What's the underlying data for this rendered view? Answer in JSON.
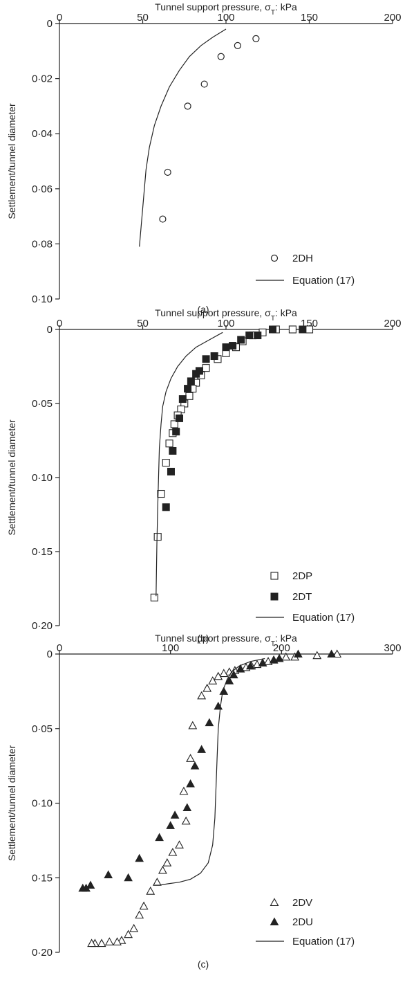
{
  "chart_data": [
    {
      "type": "scatter",
      "panel_label": "(a)",
      "xlabel": "Tunnel support pressure, σ",
      "xlabel_sub": "T",
      "xlabel_unit": ": kPa",
      "ylabel": "Settlement/tunnel diameter",
      "xlim": [
        0,
        200
      ],
      "ylim": [
        0,
        0.1
      ],
      "x_axis_position": "top",
      "y_inverted": true,
      "grid": false,
      "legend_position": "bottom-right",
      "x_ticks": [
        0,
        50,
        100,
        150,
        200
      ],
      "x_tick_labels": [
        "0",
        "50",
        "100",
        "150",
        "200"
      ],
      "y_ticks": [
        0,
        0.02,
        0.04,
        0.06,
        0.08,
        0.1
      ],
      "y_tick_labels": [
        "0",
        "0·02",
        "0·04",
        "0·06",
        "0·08",
        "0·10"
      ],
      "series": [
        {
          "name": "2DH",
          "marker": "circle-open",
          "x": [
            118,
            107,
            97,
            87,
            77,
            65,
            62
          ],
          "y": [
            0.0055,
            0.008,
            0.012,
            0.022,
            0.03,
            0.054,
            0.071
          ]
        },
        {
          "name": "Equation (17)",
          "marker": "line",
          "x": [
            100,
            92,
            85,
            78,
            72,
            66,
            61,
            57,
            54,
            52,
            51,
            50,
            49,
            48
          ],
          "y": [
            0.002,
            0.005,
            0.008,
            0.012,
            0.017,
            0.023,
            0.03,
            0.037,
            0.045,
            0.053,
            0.06,
            0.067,
            0.074,
            0.081
          ]
        }
      ]
    },
    {
      "type": "scatter",
      "panel_label": "(b)",
      "xlabel": "Tunnel support pressure, σ",
      "xlabel_sub": "T",
      "xlabel_unit": ": kPa",
      "ylabel": "Settlement/tunnel diameter",
      "xlim": [
        0,
        200
      ],
      "ylim": [
        0,
        0.2
      ],
      "x_axis_position": "top",
      "y_inverted": true,
      "grid": false,
      "legend_position": "bottom-right",
      "x_ticks": [
        0,
        50,
        100,
        150,
        200
      ],
      "x_tick_labels": [
        "0",
        "50",
        "100",
        "150",
        "200"
      ],
      "y_ticks": [
        0,
        0.05,
        0.1,
        0.15,
        0.2
      ],
      "y_tick_labels": [
        "0",
        "0·05",
        "0·10",
        "0·15",
        "0·20"
      ],
      "series": [
        {
          "name": "2DP",
          "marker": "square-open",
          "x": [
            150,
            140,
            130,
            122,
            116,
            110,
            106,
            100,
            95,
            88,
            85,
            82,
            80,
            78,
            75,
            73,
            71,
            69,
            68,
            66,
            64,
            61,
            59,
            57
          ],
          "y": [
            0.0,
            0.0,
            0.0,
            0.002,
            0.004,
            0.008,
            0.012,
            0.016,
            0.02,
            0.026,
            0.031,
            0.036,
            0.04,
            0.045,
            0.05,
            0.054,
            0.058,
            0.064,
            0.07,
            0.077,
            0.09,
            0.111,
            0.14,
            0.181
          ]
        },
        {
          "name": "2DT",
          "marker": "square-filled",
          "x": [
            146,
            128,
            119,
            114,
            109,
            104,
            100,
            93,
            88,
            84,
            82,
            79,
            77,
            74,
            72,
            70,
            68,
            67,
            64
          ],
          "y": [
            0.0,
            0.0,
            0.004,
            0.004,
            0.007,
            0.011,
            0.012,
            0.018,
            0.02,
            0.028,
            0.03,
            0.035,
            0.04,
            0.047,
            0.06,
            0.069,
            0.082,
            0.096,
            0.12
          ]
        },
        {
          "name": "Equation (17)",
          "marker": "line",
          "x": [
            98,
            90,
            82,
            76,
            71,
            67,
            64,
            62,
            61,
            60,
            59.5,
            59,
            58.5,
            58
          ],
          "y": [
            0.002,
            0.007,
            0.012,
            0.018,
            0.025,
            0.033,
            0.042,
            0.052,
            0.064,
            0.08,
            0.1,
            0.12,
            0.145,
            0.18
          ]
        }
      ]
    },
    {
      "type": "scatter",
      "panel_label": "(c)",
      "xlabel": "Tunnel support pressure, σ",
      "xlabel_sub": "T",
      "xlabel_unit": ": kPa",
      "ylabel": "Settlement/tunnel diameter",
      "xlim": [
        0,
        300
      ],
      "ylim": [
        0,
        0.2
      ],
      "x_axis_position": "top",
      "y_inverted": true,
      "grid": false,
      "legend_position": "bottom-right",
      "x_ticks": [
        0,
        100,
        200,
        300
      ],
      "x_tick_labels": [
        "0",
        "100",
        "200",
        "300"
      ],
      "y_ticks": [
        0,
        0.05,
        0.1,
        0.15,
        0.2
      ],
      "y_tick_labels": [
        "0",
        "0·05",
        "0·10",
        "0·15",
        "0·20"
      ],
      "series": [
        {
          "name": "2DV",
          "marker": "triangle-open",
          "x": [
            250,
            232,
            212,
            204,
            198,
            193,
            188,
            183,
            178,
            173,
            168,
            163,
            158,
            153,
            148,
            143,
            138,
            133,
            128,
            120,
            118,
            112,
            114,
            108,
            102,
            97,
            93,
            88,
            82,
            76,
            72,
            67,
            62,
            56,
            52,
            45,
            38,
            32,
            29
          ],
          "y": [
            0.0,
            0.001,
            0.002,
            0.002,
            0.003,
            0.004,
            0.005,
            0.006,
            0.007,
            0.008,
            0.009,
            0.01,
            0.011,
            0.012,
            0.013,
            0.015,
            0.018,
            0.023,
            0.028,
            0.048,
            0.07,
            0.092,
            0.112,
            0.128,
            0.133,
            0.14,
            0.145,
            0.153,
            0.159,
            0.169,
            0.175,
            0.184,
            0.188,
            0.192,
            0.193,
            0.193,
            0.194,
            0.194,
            0.194
          ]
        },
        {
          "name": "2DU",
          "marker": "triangle-filled",
          "x": [
            245,
            215,
            198,
            193,
            183,
            172,
            163,
            157,
            153,
            148,
            143,
            135,
            128,
            122,
            118,
            115,
            104,
            100,
            90,
            72,
            62,
            44,
            28,
            24,
            21
          ],
          "y": [
            0.0,
            0.0,
            0.003,
            0.004,
            0.006,
            0.008,
            0.01,
            0.014,
            0.018,
            0.025,
            0.035,
            0.046,
            0.064,
            0.075,
            0.087,
            0.103,
            0.108,
            0.115,
            0.123,
            0.137,
            0.15,
            0.148,
            0.155,
            0.157,
            0.157
          ]
        },
        {
          "name": "Equation (17)",
          "marker": "line",
          "x": [
            185,
            172,
            162,
            155,
            151,
            147,
            145,
            143,
            142,
            141,
            140,
            138,
            134,
            127,
            118,
            108,
            98,
            90,
            85
          ],
          "y": [
            0.003,
            0.005,
            0.008,
            0.012,
            0.017,
            0.025,
            0.035,
            0.05,
            0.07,
            0.09,
            0.11,
            0.128,
            0.14,
            0.147,
            0.151,
            0.153,
            0.154,
            0.155,
            0.155
          ]
        }
      ]
    }
  ]
}
